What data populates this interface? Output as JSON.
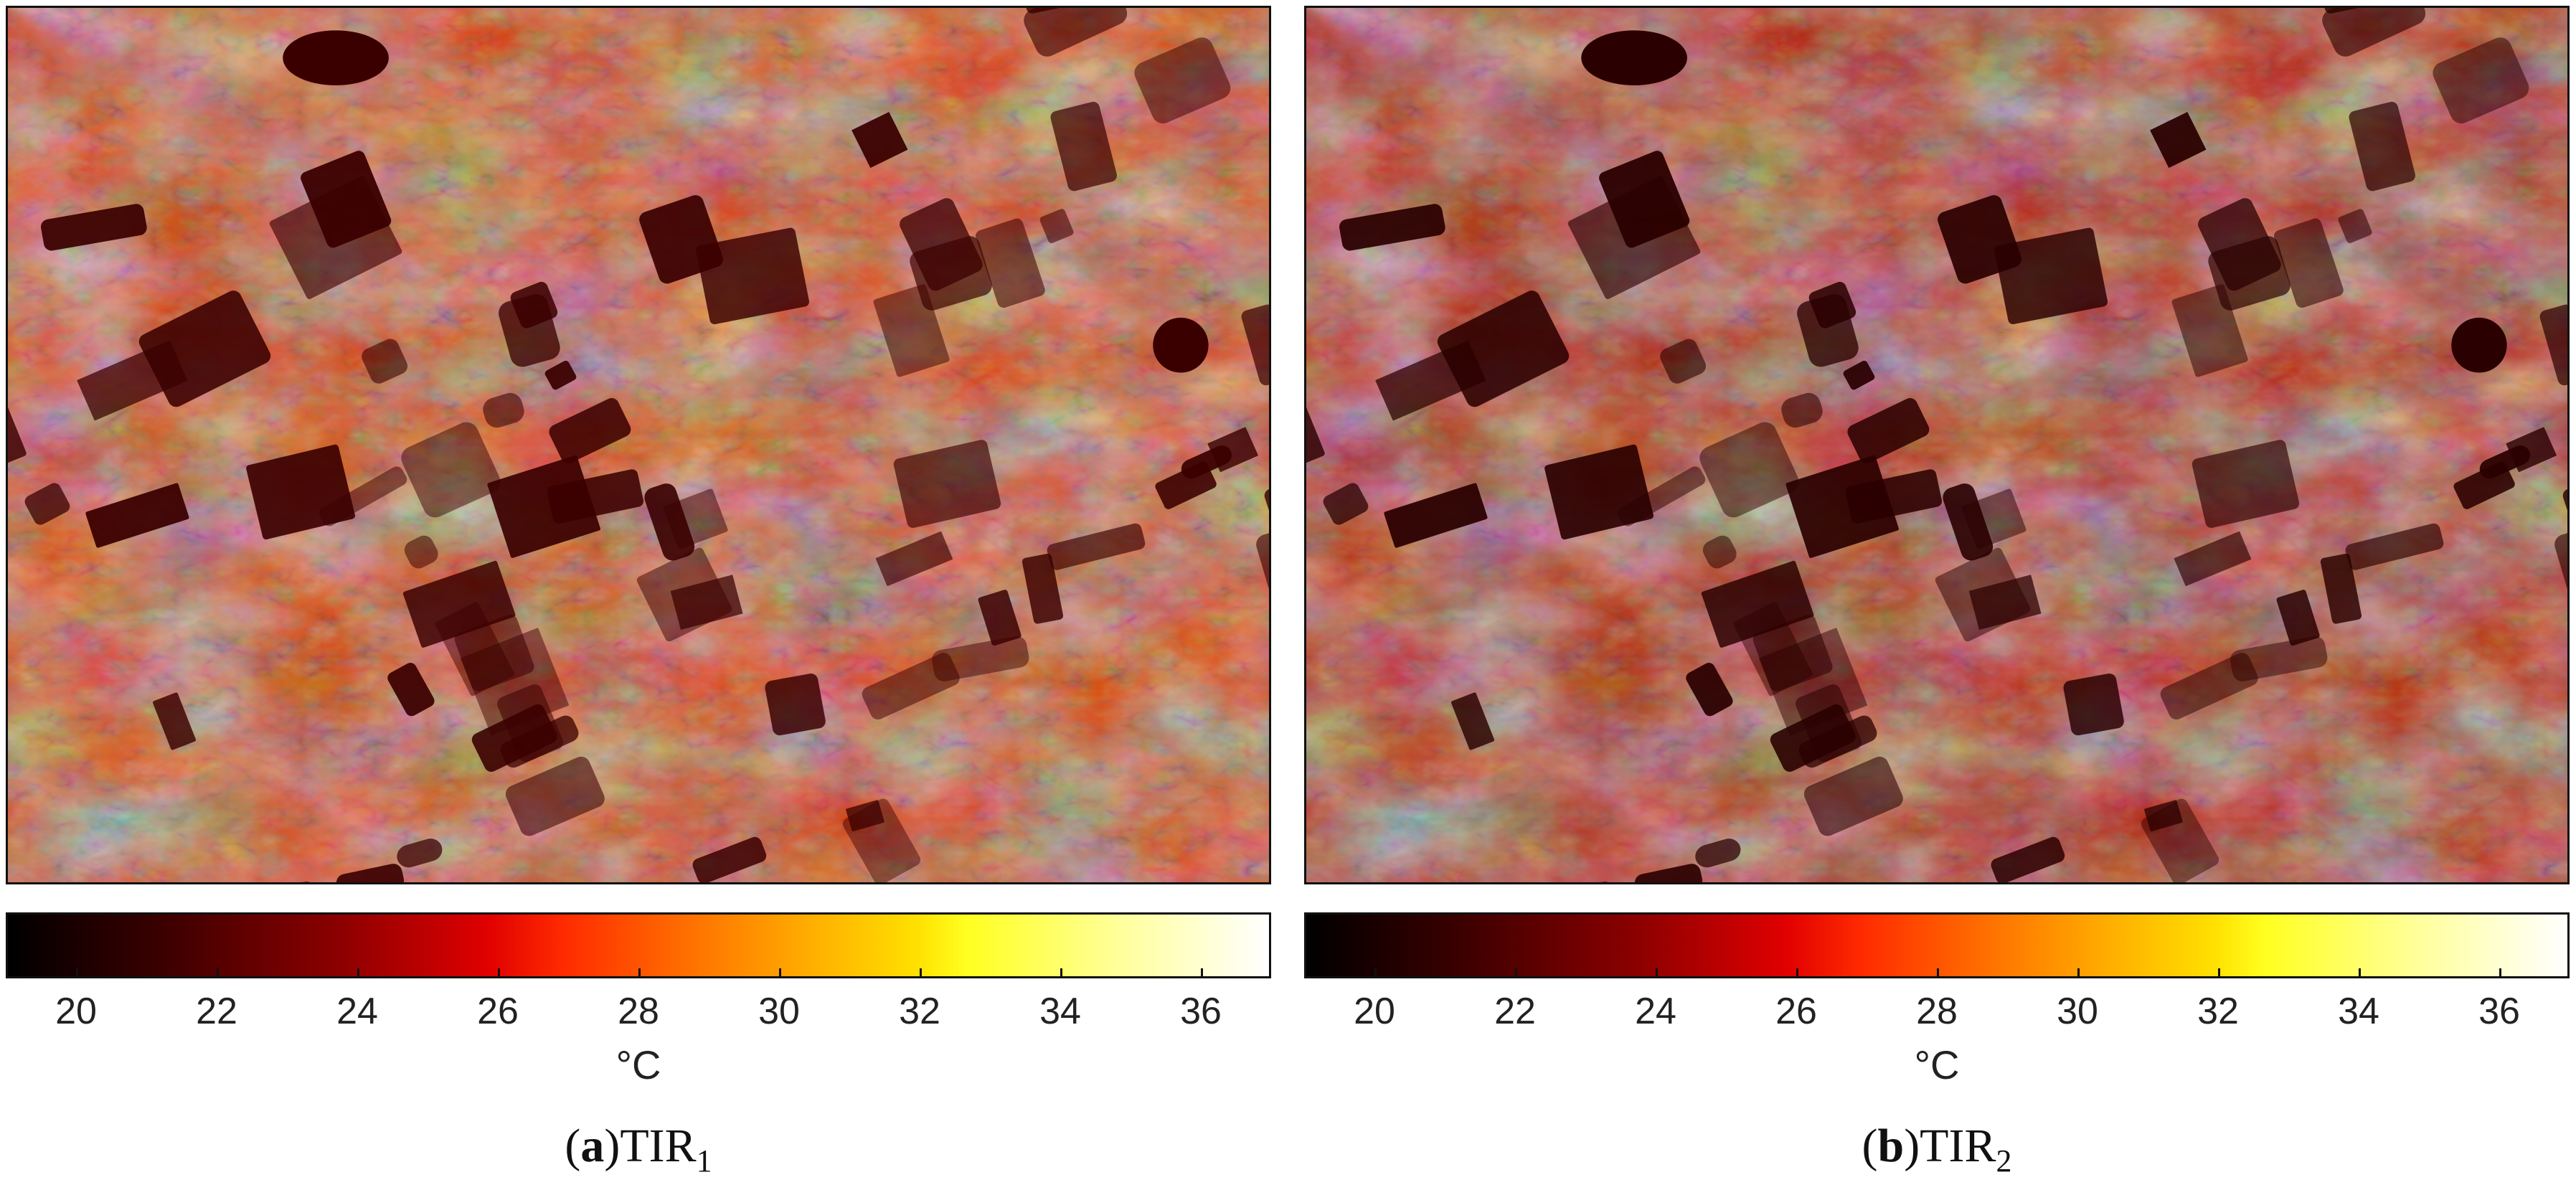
{
  "colorbar": {
    "colormap": "hot",
    "min": 19,
    "max": 37,
    "unit": "°C",
    "ticks": [
      "20",
      "22",
      "24",
      "26",
      "28",
      "30",
      "32",
      "34",
      "36"
    ],
    "tick_values": [
      20,
      22,
      24,
      26,
      28,
      30,
      32,
      34,
      36
    ]
  },
  "panels": [
    {
      "id": "a",
      "letter": "a",
      "label": "TIR",
      "subscript": "1",
      "dominant_colors": [
        "#e84400",
        "#ff9a10",
        "#ffee30",
        "#3a0000"
      ]
    },
    {
      "id": "b",
      "letter": "b",
      "label": "TIR",
      "subscript": "2",
      "dominant_colors": [
        "#c02000",
        "#ee3a00",
        "#ff8a10",
        "#2a0000"
      ]
    }
  ]
}
